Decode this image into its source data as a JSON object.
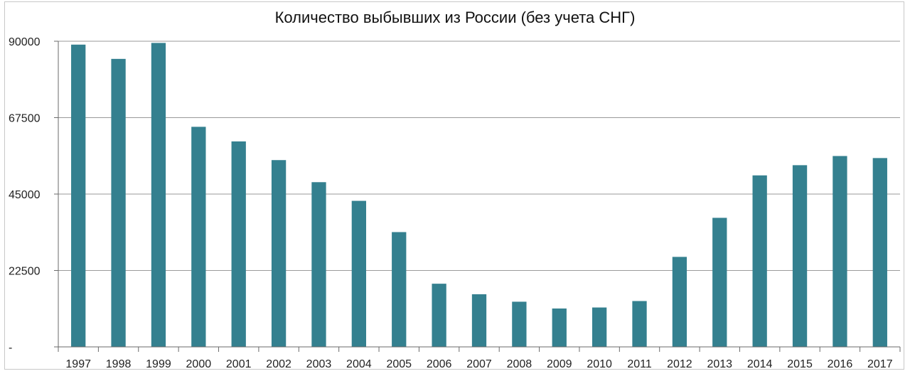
{
  "chart_data": {
    "type": "bar",
    "title": "Количество выбывших из России (без учета СНГ)",
    "xlabel": "",
    "ylabel": "",
    "categories": [
      "1997",
      "1998",
      "1999",
      "2000",
      "2001",
      "2002",
      "2003",
      "2004",
      "2005",
      "2006",
      "2007",
      "2008",
      "2009",
      "2010",
      "2011",
      "2012",
      "2013",
      "2014",
      "2015",
      "2016",
      "2017"
    ],
    "values": [
      89000,
      84800,
      89500,
      64800,
      60500,
      55000,
      48500,
      43000,
      33800,
      18600,
      15500,
      13300,
      11300,
      11600,
      13500,
      26500,
      38000,
      50500,
      53500,
      56200,
      55600
    ],
    "ylim": [
      0,
      90000
    ],
    "yticks": [
      0,
      22500,
      45000,
      67500,
      90000
    ],
    "ytick_labels": [
      "-",
      "22500",
      "45000",
      "67500",
      "90000"
    ],
    "grid": "horizontal",
    "bar_color": "#34808f",
    "legend": "none"
  }
}
